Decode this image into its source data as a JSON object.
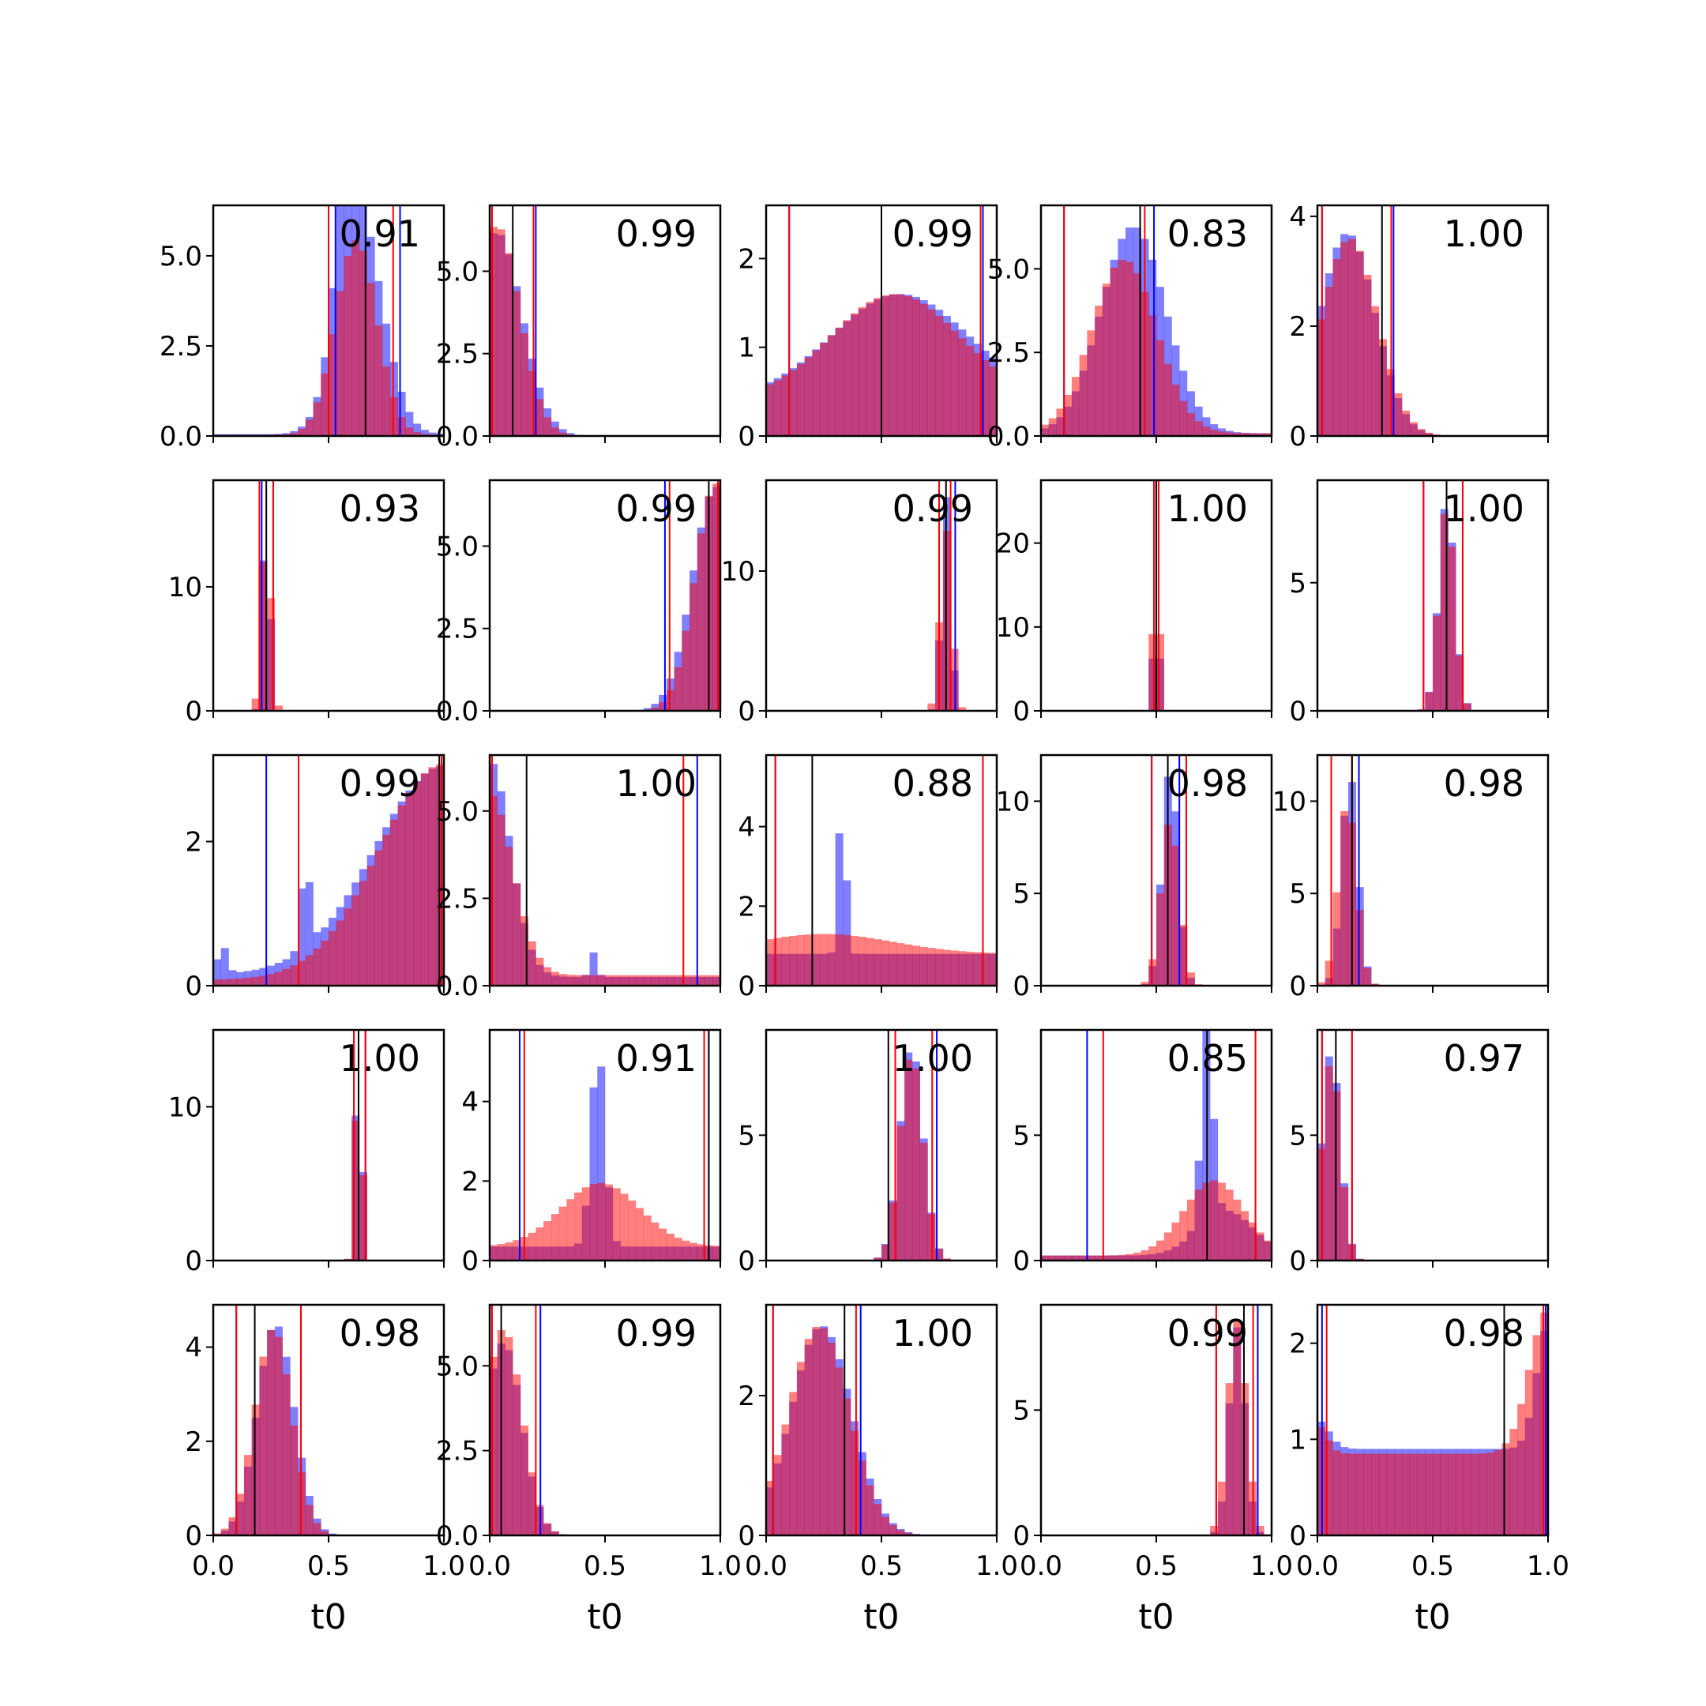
{
  "chart_data": {
    "type": "histogram-grid",
    "rows": 5,
    "cols": 5,
    "xlabel": "t0",
    "xlim": [
      0,
      1
    ],
    "x_ticks": [
      0,
      0.5,
      1
    ],
    "x_tick_labels": [
      "0.0",
      "0.5",
      "1.0"
    ],
    "series_colors": {
      "blue": "#0000ff",
      "red": "#ff0000",
      "overlap": "#bf3a6b",
      "median": "#000000"
    },
    "grid": false,
    "panels": [
      {
        "score": "0.91",
        "ylim": [
          0,
          6.4
        ],
        "y_ticks": [
          0,
          2.5,
          5
        ],
        "y_tick_labels": [
          "0.0",
          "2.5",
          "5.0"
        ],
        "black": [
          0.66
        ],
        "blue_lines": [
          0.53,
          0.81
        ],
        "red_lines": [
          0.5,
          0.78
        ],
        "blue_peaks": [
          [
            0.64,
            0.1,
            5.6
          ],
          [
            0.58,
            0.05,
            3.2
          ]
        ],
        "red_peaks": [
          [
            0.62,
            0.09,
            5.4
          ]
        ],
        "blue_base": 0.05,
        "red_base": 0.03
      },
      {
        "score": "0.99",
        "ylim": [
          0,
          7.0
        ],
        "y_ticks": [
          0,
          2.5,
          5
        ],
        "y_tick_labels": [
          "0.0",
          "2.5",
          "5.0"
        ],
        "black": [
          0.1
        ],
        "blue_lines": [
          0.01,
          0.2
        ],
        "red_lines": [
          0.01,
          0.19
        ],
        "blue_peaks": [
          [
            0.03,
            0.11,
            6.2
          ]
        ],
        "red_peaks": [
          [
            0.03,
            0.1,
            6.4
          ]
        ],
        "blue_base": 0,
        "red_base": 0
      },
      {
        "score": "0.99",
        "ylim": [
          0,
          2.6
        ],
        "y_ticks": [
          0,
          1,
          2
        ],
        "y_tick_labels": [
          "0",
          "1",
          "2"
        ],
        "black": [
          0.5
        ],
        "blue_lines": [
          0.1,
          0.94
        ],
        "red_lines": [
          0.1,
          0.93
        ],
        "blue_peaks": [
          [
            0.58,
            0.3,
            1.2
          ]
        ],
        "red_peaks": [
          [
            0.56,
            0.28,
            1.2
          ]
        ],
        "blue_base": 0.4,
        "red_base": 0.4
      },
      {
        "score": "0.83",
        "ylim": [
          0,
          6.9
        ],
        "y_ticks": [
          0,
          2.5,
          5
        ],
        "y_tick_labels": [
          "0.0",
          "2.5",
          "5.0"
        ],
        "black": [
          0.43
        ],
        "blue_lines": [
          0.1,
          0.49
        ],
        "red_lines": [
          0.1,
          0.45
        ],
        "blue_peaks": [
          [
            0.4,
            0.14,
            6.2
          ]
        ],
        "red_peaks": [
          [
            0.36,
            0.14,
            5.2
          ]
        ],
        "blue_base": 0.08,
        "red_base": 0.08
      },
      {
        "score": "1.00",
        "ylim": [
          0,
          4.2
        ],
        "y_ticks": [
          0,
          2,
          4
        ],
        "y_tick_labels": [
          "0",
          "2",
          "4"
        ],
        "black": [
          0.28
        ],
        "blue_lines": [
          0.02,
          0.33
        ],
        "red_lines": [
          0.02,
          0.32
        ],
        "blue_peaks": [
          [
            0.13,
            0.12,
            3.7
          ]
        ],
        "red_peaks": [
          [
            0.14,
            0.12,
            3.6
          ]
        ],
        "blue_base": 0,
        "red_base": 0
      },
      {
        "score": "0.93",
        "ylim": [
          0,
          18.6
        ],
        "y_ticks": [
          0,
          10
        ],
        "y_tick_labels": [
          "0",
          "10"
        ],
        "black": [
          0.23
        ],
        "blue_lines": [
          0.21,
          0.26
        ],
        "red_lines": [
          0.2,
          0.26
        ],
        "blue_peaks": [
          [
            0.23,
            0.015,
            18
          ]
        ],
        "red_peaks": [
          [
            0.23,
            0.02,
            15
          ]
        ],
        "blue_base": 0,
        "red_base": 0
      },
      {
        "score": "0.99",
        "ylim": [
          0,
          7.0
        ],
        "y_ticks": [
          0,
          2.5,
          5
        ],
        "y_tick_labels": [
          "0.0",
          "2.5",
          "5.0"
        ],
        "black": [
          0.95
        ],
        "blue_lines": [
          0.76,
          0.99
        ],
        "red_lines": [
          0.78,
          0.99
        ],
        "blue_peaks": [
          [
            0.98,
            0.1,
            6.8
          ]
        ],
        "red_peaks": [
          [
            0.98,
            0.09,
            6.9
          ]
        ],
        "blue_base": 0,
        "red_base": 0
      },
      {
        "score": "0.99",
        "ylim": [
          0,
          16.5
        ],
        "y_ticks": [
          0,
          10
        ],
        "y_tick_labels": [
          "0",
          "10"
        ],
        "black": [
          0.78
        ],
        "blue_lines": [
          0.75,
          0.82
        ],
        "red_lines": [
          0.75,
          0.8
        ],
        "blue_peaks": [
          [
            0.78,
            0.02,
            15.5
          ]
        ],
        "red_peaks": [
          [
            0.78,
            0.025,
            13
          ]
        ],
        "blue_base": 0,
        "red_base": 0
      },
      {
        "score": "1.00",
        "ylim": [
          0,
          27.5
        ],
        "y_ticks": [
          0,
          10,
          20
        ],
        "y_tick_labels": [
          "0",
          "10",
          "20"
        ],
        "black": [
          0.5
        ],
        "blue_lines": [
          0.49,
          0.51
        ],
        "red_lines": [
          0.49,
          0.51
        ],
        "blue_peaks": [
          [
            0.5,
            0.01,
            25
          ]
        ],
        "red_peaks": [
          [
            0.5,
            0.012,
            24
          ]
        ],
        "blue_base": 0,
        "red_base": 0
      },
      {
        "score": "1.00",
        "ylim": [
          0,
          9.0
        ],
        "y_ticks": [
          0,
          5
        ],
        "y_tick_labels": [
          "0",
          "5"
        ],
        "black": [
          0.56
        ],
        "blue_lines": [
          0.46,
          0.63
        ],
        "red_lines": [
          0.46,
          0.63
        ],
        "blue_peaks": [
          [
            0.56,
            0.035,
            8.2
          ]
        ],
        "red_peaks": [
          [
            0.56,
            0.035,
            8.0
          ]
        ],
        "blue_base": 0,
        "red_base": 0
      },
      {
        "score": "0.99",
        "ylim": [
          0,
          3.2
        ],
        "y_ticks": [
          0,
          2
        ],
        "y_tick_labels": [
          "0",
          "2"
        ],
        "black": [
          0.98
        ],
        "blue_lines": [
          0.23,
          0.99
        ],
        "red_lines": [
          0.37,
          0.99
        ],
        "blue_peaks": [
          [
            1.0,
            0.3,
            2.9
          ],
          [
            0.4,
            0.02,
            1.2
          ],
          [
            0.04,
            0.02,
            0.4
          ]
        ],
        "red_peaks": [
          [
            1.0,
            0.28,
            3.0
          ]
        ],
        "blue_base": 0.15,
        "red_base": 0.08
      },
      {
        "score": "1.00",
        "ylim": [
          0,
          6.6
        ],
        "y_ticks": [
          0,
          2.5,
          5
        ],
        "y_tick_labels": [
          "0.0",
          "2.5",
          "5.0"
        ],
        "black": [
          0.16
        ],
        "blue_lines": [
          0.01,
          0.9
        ],
        "red_lines": [
          0.01,
          0.84
        ],
        "blue_peaks": [
          [
            0.0,
            0.09,
            6.2
          ],
          [
            0.45,
            0.015,
            0.7
          ]
        ],
        "red_peaks": [
          [
            0.0,
            0.1,
            5.2
          ]
        ],
        "blue_base": 0.25,
        "red_base": 0.3
      },
      {
        "score": "0.88",
        "ylim": [
          0,
          5.8
        ],
        "y_ticks": [
          0,
          2,
          4
        ],
        "y_tick_labels": [
          "0",
          "2",
          "4"
        ],
        "black": [
          0.2
        ],
        "blue_lines": [
          0.04,
          0.94
        ],
        "red_lines": [
          0.04,
          0.94
        ],
        "blue_peaks": [
          [
            0.33,
            0.015,
            4.5
          ]
        ],
        "red_peaks": [
          [
            0.25,
            0.3,
            0.5
          ]
        ],
        "blue_base": 0.8,
        "red_base": 0.8
      },
      {
        "score": "0.98",
        "ylim": [
          0,
          12.5
        ],
        "y_ticks": [
          0,
          5,
          10
        ],
        "y_tick_labels": [
          "0",
          "5",
          "10"
        ],
        "black": [
          0.55
        ],
        "blue_lines": [
          0.48,
          0.6
        ],
        "red_lines": [
          0.48,
          0.63
        ],
        "blue_peaks": [
          [
            0.56,
            0.035,
            11.8
          ]
        ],
        "red_peaks": [
          [
            0.56,
            0.04,
            9
          ]
        ],
        "blue_base": 0,
        "red_base": 0
      },
      {
        "score": "0.98",
        "ylim": [
          0,
          12.5
        ],
        "y_ticks": [
          0,
          5,
          10
        ],
        "y_tick_labels": [
          "0",
          "5",
          "10"
        ],
        "black": [
          0.15
        ],
        "blue_lines": [
          0.06,
          0.18
        ],
        "red_lines": [
          0.06,
          0.15
        ],
        "blue_peaks": [
          [
            0.14,
            0.035,
            11.5
          ]
        ],
        "red_peaks": [
          [
            0.13,
            0.04,
            10
          ]
        ],
        "blue_base": 0,
        "red_base": 0
      },
      {
        "score": "1.00",
        "ylim": [
          0,
          15.0
        ],
        "y_ticks": [
          0,
          10
        ],
        "y_tick_labels": [
          "0",
          "10"
        ],
        "black": [
          0.63
        ],
        "blue_lines": [
          0.61,
          0.66
        ],
        "red_lines": [
          0.61,
          0.66
        ],
        "blue_peaks": [
          [
            0.63,
            0.015,
            14
          ]
        ],
        "red_peaks": [
          [
            0.63,
            0.015,
            13.5
          ]
        ],
        "blue_base": 0,
        "red_base": 0
      },
      {
        "score": "0.91",
        "ylim": [
          0,
          5.8
        ],
        "y_ticks": [
          0,
          2,
          4
        ],
        "y_tick_labels": [
          "0",
          "2",
          "4"
        ],
        "black": [
          0.95
        ],
        "blue_lines": [
          0.13,
          0.95
        ],
        "red_lines": [
          0.15,
          0.93
        ],
        "blue_peaks": [
          [
            0.47,
            0.03,
            5.0
          ]
        ],
        "red_peaks": [
          [
            0.48,
            0.17,
            1.6
          ]
        ],
        "blue_base": 0.35,
        "red_base": 0.35
      },
      {
        "score": "1.00",
        "ylim": [
          0,
          9.2
        ],
        "y_ticks": [
          0,
          5
        ],
        "y_tick_labels": [
          "0",
          "5"
        ],
        "black": [
          0.53
        ],
        "blue_lines": [
          0.56,
          0.74
        ],
        "red_lines": [
          0.56,
          0.72
        ],
        "blue_peaks": [
          [
            0.63,
            0.05,
            8.6
          ]
        ],
        "red_peaks": [
          [
            0.63,
            0.05,
            8.3
          ]
        ],
        "blue_base": 0,
        "red_base": 0
      },
      {
        "score": "0.85",
        "ylim": [
          0,
          9.2
        ],
        "y_ticks": [
          0,
          5
        ],
        "y_tick_labels": [
          "0",
          "5"
        ],
        "black": [
          0.72
        ],
        "blue_lines": [
          0.2,
          0.93
        ],
        "red_lines": [
          0.27,
          0.93
        ],
        "blue_peaks": [
          [
            0.72,
            0.025,
            7.8
          ],
          [
            0.8,
            0.12,
            1.8
          ]
        ],
        "red_peaks": [
          [
            0.75,
            0.13,
            3.0
          ]
        ],
        "blue_base": 0.2,
        "red_base": 0.2
      },
      {
        "score": "0.97",
        "ylim": [
          0,
          9.2
        ],
        "y_ticks": [
          0,
          5
        ],
        "y_tick_labels": [
          "0",
          "5"
        ],
        "black": [
          0.08
        ],
        "blue_lines": [
          0.02,
          0.15
        ],
        "red_lines": [
          0.02,
          0.15
        ],
        "blue_peaks": [
          [
            0.06,
            0.04,
            8.4
          ]
        ],
        "red_peaks": [
          [
            0.06,
            0.04,
            8.0
          ]
        ],
        "blue_base": 0,
        "red_base": 0
      },
      {
        "score": "0.98",
        "ylim": [
          0,
          4.9
        ],
        "y_ticks": [
          0,
          2,
          4
        ],
        "y_tick_labels": [
          "0",
          "2",
          "4"
        ],
        "black": [
          0.18
        ],
        "blue_lines": [
          0.1,
          0.38
        ],
        "red_lines": [
          0.1,
          0.38
        ],
        "blue_peaks": [
          [
            0.27,
            0.08,
            4.5
          ]
        ],
        "red_peaks": [
          [
            0.26,
            0.08,
            4.4
          ]
        ],
        "blue_base": 0,
        "red_base": 0
      },
      {
        "score": "0.99",
        "ylim": [
          0,
          6.8
        ],
        "y_ticks": [
          0,
          2.5,
          5
        ],
        "y_tick_labels": [
          "0.0",
          "2.5",
          "5.0"
        ],
        "black": [
          0.05
        ],
        "blue_lines": [
          0.01,
          0.22
        ],
        "red_lines": [
          0.01,
          0.2
        ],
        "blue_peaks": [
          [
            0.06,
            0.08,
            5.7
          ]
        ],
        "red_peaks": [
          [
            0.06,
            0.08,
            6.1
          ]
        ],
        "blue_base": 0,
        "red_base": 0
      },
      {
        "score": "1.00",
        "ylim": [
          0,
          3.3
        ],
        "y_ticks": [
          0,
          2
        ],
        "y_tick_labels": [
          "0",
          "2"
        ],
        "black": [
          0.34
        ],
        "blue_lines": [
          0.03,
          0.41
        ],
        "red_lines": [
          0.03,
          0.39
        ],
        "blue_peaks": [
          [
            0.24,
            0.13,
            3.0
          ]
        ],
        "red_peaks": [
          [
            0.23,
            0.13,
            3.0
          ]
        ],
        "blue_base": 0,
        "red_base": 0
      },
      {
        "score": "0.99",
        "ylim": [
          0,
          9.2
        ],
        "y_ticks": [
          0,
          5
        ],
        "y_tick_labels": [
          "0",
          "5"
        ],
        "black": [
          0.88
        ],
        "blue_lines": [
          0.76,
          0.94
        ],
        "red_lines": [
          0.76,
          0.92
        ],
        "blue_peaks": [
          [
            0.85,
            0.035,
            8.3
          ]
        ],
        "red_peaks": [
          [
            0.85,
            0.04,
            8.6
          ]
        ],
        "blue_base": 0,
        "red_base": 0
      },
      {
        "score": "0.98",
        "ylim": [
          0,
          2.4
        ],
        "y_ticks": [
          0,
          1,
          2
        ],
        "y_tick_labels": [
          "0",
          "1",
          "2"
        ],
        "black": [
          0.81
        ],
        "blue_lines": [
          0.02,
          0.99
        ],
        "red_lines": [
          0.04,
          0.98
        ],
        "blue_peaks": [
          [
            1.0,
            0.05,
            1.3
          ],
          [
            0.0,
            0.05,
            0.3
          ]
        ],
        "red_peaks": [
          [
            1.0,
            0.08,
            1.5
          ],
          [
            0.0,
            0.04,
            0.3
          ]
        ],
        "blue_base": 0.9,
        "red_base": 0.85
      }
    ]
  }
}
